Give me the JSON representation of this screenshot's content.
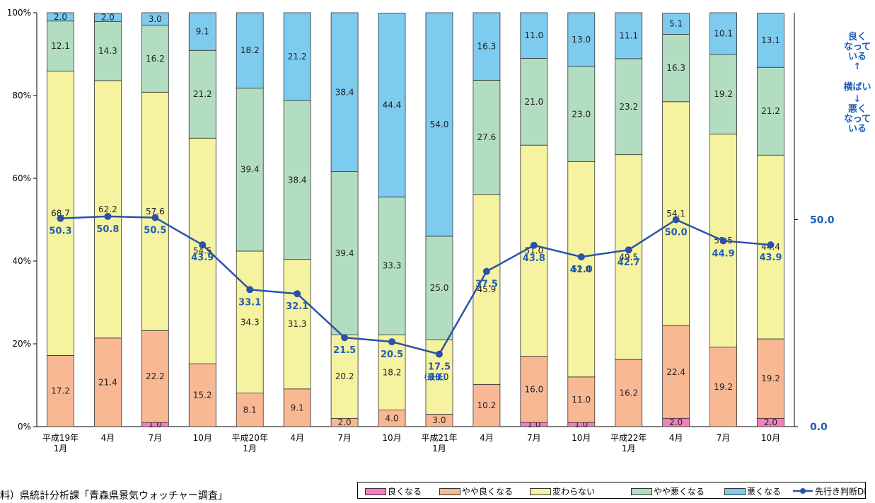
{
  "chart_data": {
    "type": "stacked-bar-with-line",
    "categories": [
      [
        "平成19年",
        "1月"
      ],
      [
        "4月"
      ],
      [
        "7月"
      ],
      [
        "10月"
      ],
      [
        "平成20年",
        "1月"
      ],
      [
        "4月"
      ],
      [
        "7月"
      ],
      [
        "10月"
      ],
      [
        "平成21年",
        "1月"
      ],
      [
        "4月"
      ],
      [
        "7月"
      ],
      [
        "10月"
      ],
      [
        "平成22年",
        "1月"
      ],
      [
        "4月"
      ],
      [
        "7月"
      ],
      [
        "10月"
      ]
    ],
    "y_left_ticks": [
      "0%",
      "20%",
      "40%",
      "60%",
      "80%",
      "100%"
    ],
    "y_right_ticks": [
      "0.0",
      "50.0"
    ],
    "series": [
      {
        "name": "良くなる",
        "color": "#f47fbf",
        "values": [
          0,
          0,
          1.0,
          0,
          0,
          0,
          0,
          0,
          0,
          0,
          1.0,
          1.0,
          0,
          2.0,
          0,
          2.0
        ],
        "labels": [
          "",
          "",
          "1.0",
          "",
          "",
          "",
          "",
          "",
          "",
          "",
          "1.0",
          "1.0",
          "",
          "2.0",
          "",
          "2.0"
        ]
      },
      {
        "name": "やや良くなる",
        "color": "#f9b894",
        "values": [
          17.2,
          21.4,
          22.2,
          15.2,
          8.1,
          9.1,
          2.0,
          4.0,
          3.0,
          10.2,
          16.0,
          11.0,
          16.2,
          22.4,
          19.2,
          19.2
        ],
        "labels": [
          "17.2",
          "21.4",
          "22.2",
          "15.2",
          "8.1",
          "9.1",
          "2.0",
          "4.0",
          "3.0",
          "10.2",
          "16.0",
          "11.0",
          "16.2",
          "22.4",
          "19.2",
          "19.2"
        ]
      },
      {
        "name": "変わらない",
        "color": "#f6f3a0",
        "values": [
          68.7,
          62.2,
          57.6,
          54.5,
          34.3,
          31.3,
          20.2,
          18.2,
          18.0,
          45.9,
          51.0,
          52.0,
          49.5,
          54.1,
          51.5,
          44.4
        ],
        "labels": [
          "68.7",
          "62.2",
          "57.6",
          "54.5",
          "34.3",
          "31.3",
          "20.2",
          "18.2",
          "18.0",
          "45.9",
          "51.0",
          "52.0",
          "49.5",
          "54.1",
          "51.5",
          "44.4"
        ]
      },
      {
        "name": "やや悪くなる",
        "color": "#b3ddc0",
        "values": [
          12.1,
          14.3,
          16.2,
          21.2,
          39.4,
          38.4,
          39.4,
          33.3,
          25.0,
          27.6,
          21.0,
          23.0,
          23.2,
          16.3,
          19.2,
          21.2
        ],
        "labels": [
          "12.1",
          "14.3",
          "16.2",
          "21.2",
          "39.4",
          "38.4",
          "39.4",
          "33.3",
          "25.0",
          "27.6",
          "21.0",
          "23.0",
          "23.2",
          "16.3",
          "19.2",
          "21.2"
        ]
      },
      {
        "name": "悪くなる",
        "color": "#7ecbf0",
        "values": [
          2.0,
          2.0,
          3.0,
          9.1,
          18.2,
          21.2,
          38.4,
          44.4,
          54.0,
          16.3,
          11.0,
          13.0,
          11.1,
          5.1,
          10.1,
          13.1
        ],
        "labels": [
          "2.0",
          "2.0",
          "3.0",
          "9.1",
          "18.2",
          "21.2",
          "38.4",
          "44.4",
          "54.0",
          "16.3",
          "11.0",
          "13.0",
          "11.1",
          "5.1",
          "10.1",
          "13.1"
        ]
      }
    ],
    "line": {
      "name": "先行き判断DI",
      "color": "#2b52a8",
      "values": [
        50.3,
        50.8,
        50.5,
        43.9,
        33.1,
        32.1,
        21.5,
        20.5,
        17.5,
        37.5,
        43.8,
        41.0,
        42.7,
        50.0,
        44.9,
        43.9
      ],
      "labels": [
        "50.3",
        "50.8",
        "50.5",
        "43.9",
        "33.1",
        "32.1",
        "21.5",
        "20.5",
        "17.5",
        "37.5",
        "43.8",
        "41.0",
        "42.7",
        "50.0",
        "44.9",
        "43.9"
      ]
    },
    "min_annotation": "（最低）",
    "right_axis_labels": {
      "top": [
        "良く",
        "なって",
        "いる"
      ],
      "middle": "横ばい",
      "bottom": [
        "悪く",
        "なって",
        "いる"
      ],
      "arrow_up": "↑",
      "arrow_down": "↓"
    },
    "legend_placement": "bottom-right"
  },
  "source": "料）県統計分析課「青森県景気ウォッチャー調査」"
}
